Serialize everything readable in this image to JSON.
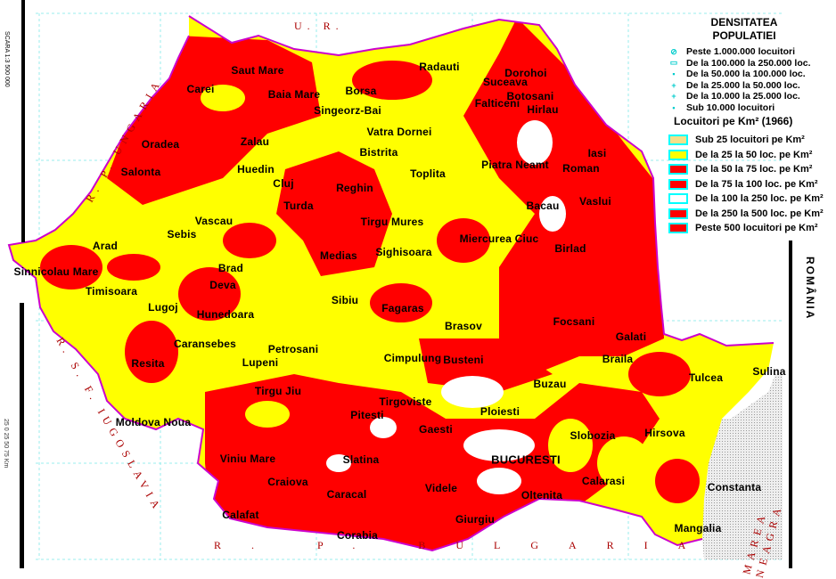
{
  "legend": {
    "title_line1": "DENSITATEA",
    "title_line2": "POPULATIEI",
    "city_sizes": [
      {
        "icon": "hatched-circle-icon",
        "label": "Peste 1.000.000 locuitori"
      },
      {
        "icon": "open-square-icon",
        "label": "De la 100.000 la 250.000 loc."
      },
      {
        "icon": "filled-square-icon",
        "label": "De la 50.000 la 100.000  loc."
      },
      {
        "icon": "small-cross-icon",
        "label": "De la 25.000 la 50.000 loc."
      },
      {
        "icon": "small-plus-icon",
        "label": "De la 10.000 la 25.000 loc."
      },
      {
        "icon": "dot-icon",
        "label": "Sub 10.000 locuitori"
      }
    ],
    "density_title": "Locuitori pe Km² (1966)",
    "density_classes": [
      {
        "label": "Sub 25 locuitori pe Km²",
        "color": "#f4e08a"
      },
      {
        "label": "De la 25 la 50 loc. pe Km²",
        "color": "#ffff00"
      },
      {
        "label": "De la 50 la 75 loc. pe Km²",
        "color": "#ff0000"
      },
      {
        "label": "De la 75 la 100 loc. pe Km²",
        "color": "#ff0000"
      },
      {
        "label": "De la 100 la 250 loc. pe Km²",
        "color": "#ffffff"
      },
      {
        "label": "De la 250 la 500 loc. pe Km²",
        "color": "#ff0000"
      },
      {
        "label": "Peste 500 locuitori pe Km²",
        "color": "#ff0000"
      }
    ]
  },
  "country_name": "ROMÂNIA",
  "scale_label": "SCARA 1:3 500 000",
  "scale_ticks": "25  0  25  50  75 Km",
  "neighbors": {
    "north": "U.        R.",
    "west": "R. P. UNGARIA",
    "southwest": "R. S. F. IUGOSLAVIA",
    "south": "R. P. BULGARIA",
    "sea": "MAREA NEAGRA"
  },
  "cities": [
    "Dorohoi",
    "Botosani",
    "Radauti",
    "Suceava",
    "Borsa",
    "Saut Mare",
    "Carei",
    "Baia Mare",
    "Singeorz-Bai",
    "Falticeni",
    "Hirlau",
    "Vatra Dornei",
    "Oradea",
    "Zalau",
    "Bistrita",
    "Iasi",
    "Salonta",
    "Huedin",
    "Cluj",
    "Toplita",
    "Piatra Neamt",
    "Roman",
    "Reghin",
    "Turda",
    "Bacau",
    "Vaslui",
    "Vascau",
    "Tirgu Mures",
    "Sebis",
    "Miercurea Ciuc",
    "Arad",
    "Birlad",
    "Sinnicolau Mare",
    "Brad",
    "Medias",
    "Sighisoara",
    "Deva",
    "Timisoara",
    "Sibiu",
    "Fagaras",
    "Lugoj",
    "Hunedoara",
    "Focsani",
    "Brasov",
    "Galati",
    "Caransebes",
    "Petrosani",
    "Cimpulung",
    "Busteni",
    "Braila",
    "Lupeni",
    "Resita",
    "Tulcea",
    "Sulina",
    "Tirgu Jiu",
    "Buzau",
    "Tirgoviste",
    "Pitesti",
    "Ploiesti",
    "Gaesti",
    "Hirsova",
    "Moldova Noua",
    "Slobozia",
    "BUCURESTI",
    "Viniu Mare",
    "Slatina",
    "Craiova",
    "Constanta",
    "Calarasi",
    "Videle",
    "Caracal",
    "Oltenita",
    "Calafat",
    "Giurgiu",
    "Corabia",
    "Mangalia"
  ]
}
